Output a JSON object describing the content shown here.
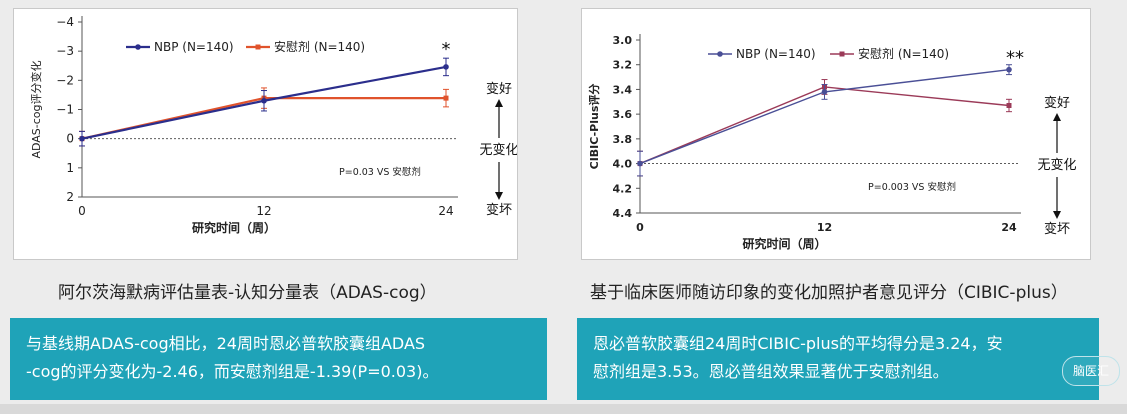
{
  "chart_data": [
    {
      "type": "line",
      "ylabel": "ADAS-cog评分变化",
      "xlabel": "研究时间（周）",
      "x": [
        0,
        12,
        24
      ],
      "y_ticks": [
        -4,
        -3,
        -2,
        -1,
        0,
        1,
        2
      ],
      "y_tick_labels": [
        "−4",
        "−3",
        "−2",
        "−1",
        "0",
        "1",
        "2"
      ],
      "ylim": [
        -4,
        2
      ],
      "y_inverted": true,
      "legend_position": "top-left",
      "series": [
        {
          "name": "NBP (N=140)",
          "values": [
            0,
            -1.3,
            -2.46
          ],
          "error": [
            0.25,
            0.35,
            0.3
          ],
          "color": "#2b2e8c"
        },
        {
          "name": "安慰剂 (N=140)",
          "values": [
            0,
            -1.39,
            -1.39
          ],
          "error": [
            0.25,
            0.35,
            0.3
          ],
          "color": "#e0532c"
        }
      ],
      "significance_mark": "*",
      "pvalue_text": "P=0.03 VS 安慰剂",
      "arrow_up": "变好",
      "arrow_mid": "无变化",
      "arrow_down": "变坏"
    },
    {
      "type": "line",
      "ylabel": "CIBIC-Plus评分",
      "xlabel": "研究时间（周）",
      "x": [
        0,
        12,
        24
      ],
      "y_ticks": [
        3.0,
        3.2,
        3.4,
        3.6,
        3.8,
        4.0,
        4.2,
        4.4
      ],
      "y_tick_labels": [
        "3.0",
        "3.2",
        "3.4",
        "3.6",
        "3.8",
        "4.0",
        "4.2",
        "4.4"
      ],
      "ylim": [
        3.0,
        4.4
      ],
      "y_inverted": true,
      "legend_position": "top-left",
      "series": [
        {
          "name": "NBP (N=140)",
          "values": [
            4.0,
            3.42,
            3.24
          ],
          "error": [
            0.1,
            0.06,
            0.04
          ],
          "color": "#4a4f96"
        },
        {
          "name": "安慰剂 (N=140)",
          "values": [
            4.0,
            3.38,
            3.53
          ],
          "error": [
            0.1,
            0.06,
            0.05
          ],
          "color": "#9b3a58"
        }
      ],
      "significance_mark": "**",
      "pvalue_text": "P=0.003 VS 安慰剂",
      "arrow_up": "变好",
      "arrow_mid": "无变化",
      "arrow_down": "变坏"
    }
  ],
  "captions": {
    "left": "阿尔茨海默病评估量表-认知分量表（ADAS-cog）",
    "right": "基于临床医师随访印象的变化加照护者意见评分（CIBIC-plus）"
  },
  "notes": {
    "left_line1": "与基线期ADAS-cog相比，24周时恩必普软胶囊组ADAS",
    "left_line2": "-cog的评分变化为-2.46，而安慰剂组是-1.39(P=0.03)。",
    "right_line1": "恩必普软胶囊组24周时CIBIC-plus的平均得分是3.24，安",
    "right_line2": "慰剂组是3.53。恩必普组效果显著优于安慰剂组。"
  },
  "logo_text": "脑医汇"
}
